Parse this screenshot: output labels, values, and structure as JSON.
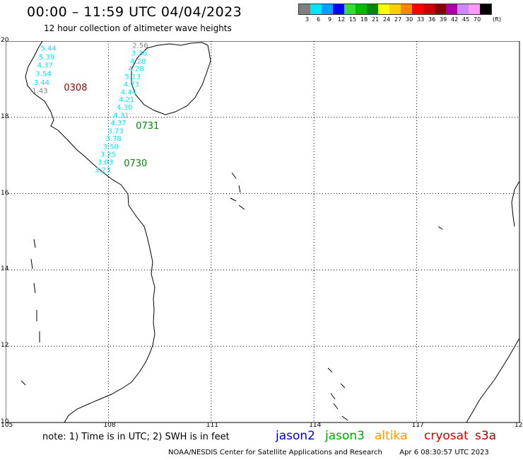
{
  "header": {
    "title": "00:00 – 11:59 UTC 04/04/2023",
    "subtitle": "12 hour collection of altimeter wave heights"
  },
  "legend": {
    "unit": "(ft)",
    "bins": [
      {
        "label": "3",
        "color": "#808080"
      },
      {
        "label": "6",
        "color": "#00e5ff"
      },
      {
        "label": "9",
        "color": "#00a0ff"
      },
      {
        "label": "12",
        "color": "#0000ff"
      },
      {
        "label": "15",
        "color": "#33dd33"
      },
      {
        "label": "18",
        "color": "#00bb00"
      },
      {
        "label": "21",
        "color": "#008800"
      },
      {
        "label": "24",
        "color": "#ffff00"
      },
      {
        "label": "27",
        "color": "#ffcc00"
      },
      {
        "label": "30",
        "color": "#ff8800"
      },
      {
        "label": "33",
        "color": "#ff0000"
      },
      {
        "label": "36",
        "color": "#cc0000"
      },
      {
        "label": "39",
        "color": "#880000"
      },
      {
        "label": "42",
        "color": "#aa00aa"
      },
      {
        "label": "45",
        "color": "#cc88ff"
      },
      {
        "label": "70",
        "color": "#ff99ff"
      },
      {
        "label": "",
        "color": "#000000"
      }
    ]
  },
  "map": {
    "lon_range": [
      105,
      120
    ],
    "lat_range": [
      10,
      20
    ],
    "x_ticks": [
      "105",
      "108",
      "111",
      "114",
      "117",
      "120"
    ],
    "y_ticks": [
      "20",
      "18",
      "16",
      "14",
      "12",
      "10"
    ],
    "grid_lons": [
      108,
      111,
      114,
      117
    ],
    "grid_lats": [
      18,
      16,
      14,
      12
    ],
    "tracks": [
      {
        "id": "0308",
        "label": "0308",
        "label_color": "#8b0000",
        "label_pos": [
          106.7,
          18.7
        ],
        "points": [
          {
            "lon": 106.25,
            "lat": 19.75,
            "swh": "5.44",
            "color": "#00e5ff"
          },
          {
            "lon": 106.2,
            "lat": 19.52,
            "swh": "5.39",
            "color": "#00e5ff"
          },
          {
            "lon": 106.15,
            "lat": 19.3,
            "swh": "4.37",
            "color": "#00e5ff"
          },
          {
            "lon": 106.1,
            "lat": 19.08,
            "swh": "3.54",
            "color": "#00e5ff"
          },
          {
            "lon": 106.05,
            "lat": 18.85,
            "swh": "3.44",
            "color": "#00e5ff"
          },
          {
            "lon": 106.0,
            "lat": 18.64,
            "swh": "1.43",
            "color": "#808080"
          }
        ]
      },
      {
        "id": "0731",
        "label": "0731",
        "label_color": "#008800",
        "label_pos": [
          108.8,
          17.7
        ],
        "points": [
          {
            "lon": 108.93,
            "lat": 19.82,
            "swh": "2.56",
            "color": "#808080"
          },
          {
            "lon": 108.9,
            "lat": 19.62,
            "swh": "3.36",
            "color": "#00e5ff"
          },
          {
            "lon": 108.86,
            "lat": 19.41,
            "swh": "4.28",
            "color": "#00e5ff"
          },
          {
            "lon": 108.81,
            "lat": 19.21,
            "swh": "4.28",
            "color": "#00e5ff"
          },
          {
            "lon": 108.71,
            "lat": 19.01,
            "swh": "5.13",
            "color": "#00e5ff"
          },
          {
            "lon": 108.67,
            "lat": 18.8,
            "swh": "4.73",
            "color": "#00e5ff"
          },
          {
            "lon": 108.59,
            "lat": 18.6,
            "swh": "4.44",
            "color": "#00e5ff"
          },
          {
            "lon": 108.53,
            "lat": 18.4,
            "swh": "4.21",
            "color": "#00e5ff"
          },
          {
            "lon": 108.47,
            "lat": 18.2,
            "swh": "4.30",
            "color": "#00e5ff"
          },
          {
            "lon": 108.37,
            "lat": 17.99,
            "swh": "4.31",
            "color": "#00e5ff"
          },
          {
            "lon": 108.29,
            "lat": 17.79,
            "swh": "4.37",
            "color": "#00e5ff"
          },
          {
            "lon": 108.21,
            "lat": 17.58,
            "swh": "3.73",
            "color": "#00e5ff"
          }
        ]
      },
      {
        "id": "0730",
        "label": "0730",
        "label_color": "#008800",
        "label_pos": [
          108.45,
          16.72
        ],
        "points": [
          {
            "lon": 108.15,
            "lat": 17.38,
            "swh": "3.78",
            "color": "#00e5ff"
          },
          {
            "lon": 108.07,
            "lat": 17.17,
            "swh": "3.50",
            "color": "#00e5ff"
          },
          {
            "lon": 107.99,
            "lat": 16.97,
            "swh": "3.25",
            "color": "#00e5ff"
          },
          {
            "lon": 107.91,
            "lat": 16.76,
            "swh": "3.03",
            "color": "#00e5ff"
          },
          {
            "lon": 107.83,
            "lat": 16.56,
            "swh": "3.23",
            "color": "#00e5ff"
          }
        ]
      }
    ]
  },
  "footer": {
    "note": "note: 1) Time is in UTC; 2) SWH is in feet",
    "satellites": [
      {
        "name": "jason2",
        "color": "#0000dd"
      },
      {
        "name": "jason3",
        "color": "#00aa00"
      },
      {
        "name": "altika",
        "color": "#ff9900"
      },
      {
        "name": "cryosat",
        "color": "#dd0000"
      },
      {
        "name": "s3a",
        "color": "#aa0000"
      }
    ],
    "credit": "NOAA/NESDIS Center for Satellite Applications and Research",
    "timestamp": "Apr  6 08:30:57 UTC 2023"
  }
}
